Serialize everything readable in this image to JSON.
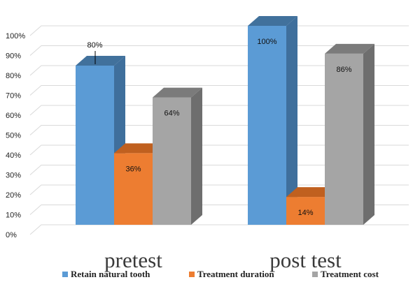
{
  "chart_data": {
    "type": "bar",
    "categories": [
      "pretest",
      "post test"
    ],
    "series": [
      {
        "name": "Retain natural tooth",
        "values": [
          80,
          100
        ],
        "labels": [
          "80%",
          "100%"
        ],
        "color": "#5b9bd5",
        "side_color": "#3f6f9c",
        "top_color": "#41719c"
      },
      {
        "name": "Treatment duration",
        "values": [
          36,
          14
        ],
        "labels": [
          "36%",
          "14%"
        ],
        "color": "#ed7d31",
        "side_color": "#b05a1f",
        "top_color": "#c0601f"
      },
      {
        "name": "Treatment cost",
        "values": [
          64,
          86
        ],
        "labels": [
          "64%",
          "86%"
        ],
        "color": "#a5a5a5",
        "side_color": "#6e6e6e",
        "top_color": "#7b7b7b"
      }
    ],
    "ylim": [
      0,
      100
    ],
    "yticks": [
      "0%",
      "10%",
      "20%",
      "30%",
      "40%",
      "50%",
      "60%",
      "70%",
      "80%",
      "90%",
      "100%"
    ],
    "grid": true,
    "legend_position": "bottom"
  }
}
